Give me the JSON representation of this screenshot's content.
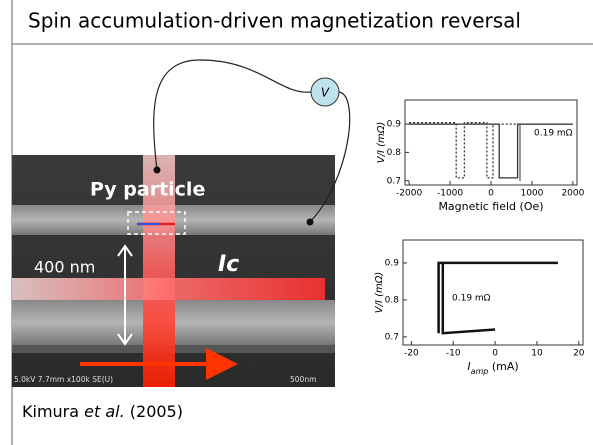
{
  "header": {
    "title": "Spin accumulation-driven magnetization reversal"
  },
  "image": {
    "labels": {
      "particle": "Py particle",
      "gap": "400 nm",
      "current": "Ic",
      "voltmeter": "V",
      "info": "5.0kV 7.7mm x100k SE(U)",
      "scale": "500nm"
    }
  },
  "plots": [
    {
      "ylabel": "V/I (mΩ)",
      "xlabel": [
        "Magnetic field (Oe)"
      ],
      "annotation": "0.19 mΩ",
      "xlim": [
        -2100,
        2100
      ],
      "ylim": [
        0.685,
        0.985
      ],
      "xticks": [
        -2000,
        -1000,
        0,
        1000,
        2000
      ],
      "yticks": [
        0.7,
        0.8,
        0.9
      ],
      "series": [
        {
          "color": "#333333",
          "dashed": true,
          "x": [
            -2000,
            -850,
            -850,
            -650,
            -650,
            -100,
            -100,
            50,
            50,
            2000
          ],
          "values": [
            0.905,
            0.905,
            0.71,
            0.71,
            0.905,
            0.905,
            0.71,
            0.71,
            0.9,
            0.9
          ]
        },
        {
          "color": "#333333",
          "dashed": false,
          "x": [
            -2000,
            200,
            200,
            650,
            650,
            2000
          ],
          "values": [
            0.9,
            0.9,
            0.71,
            0.71,
            0.9,
            0.9
          ]
        }
      ]
    },
    {
      "ylabel": "V/I (mΩ)",
      "xlabel": [
        "I",
        "amp",
        " (mA)"
      ],
      "annotation": "0.19 mΩ",
      "xlim": [
        -22,
        21
      ],
      "ylim": [
        0.678,
        0.962
      ],
      "xticks": [
        -20,
        -10,
        0,
        10,
        20
      ],
      "yticks": [
        0.7,
        0.8,
        0.9
      ],
      "series": [
        {
          "color": "#111111",
          "dashed": false,
          "x": [
            -13.5,
            -13.5,
            15
          ],
          "values": [
            0.71,
            0.9,
            0.9
          ]
        },
        {
          "color": "#111111",
          "dashed": false,
          "x": [
            -12.5,
            -12.5,
            0
          ],
          "values": [
            0.9,
            0.71,
            0.72
          ]
        }
      ]
    }
  ],
  "caption": [
    "Kimura ",
    "et al.",
    " (2005)"
  ]
}
